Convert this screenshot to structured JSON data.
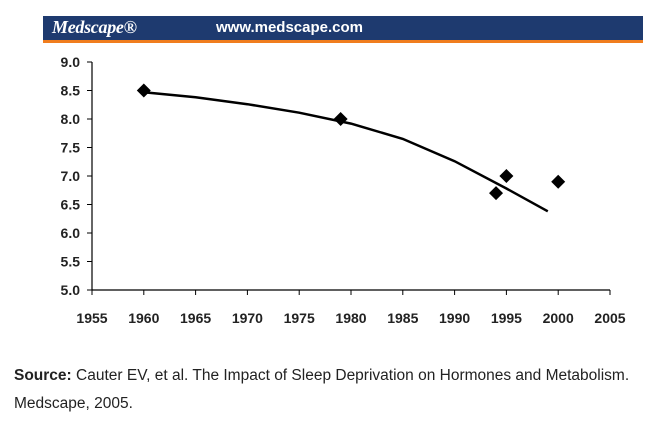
{
  "header": {
    "brand": "Medscape®",
    "site": "www.medscape.com"
  },
  "colors": {
    "banner": "#1e3a6f",
    "accent_strip": "#f07d1e",
    "marker": "#000000",
    "trend": "#000000"
  },
  "chart_data": {
    "type": "scatter",
    "title": "",
    "xlabel": "",
    "ylabel": "",
    "xlim": [
      1955,
      2005
    ],
    "ylim": [
      5.0,
      9.0
    ],
    "x_ticks": [
      "1955",
      "1960",
      "1965",
      "1970",
      "1975",
      "1980",
      "1985",
      "1990",
      "1995",
      "2000",
      "2005"
    ],
    "y_ticks": [
      "5.0",
      "5.5",
      "6.0",
      "6.5",
      "7.0",
      "7.5",
      "8.0",
      "8.5",
      "9.0"
    ],
    "grid": false,
    "legend": "none",
    "series": [
      {
        "marker": "diamond",
        "points": [
          {
            "x": 1960,
            "y": 8.5
          },
          {
            "x": 1979,
            "y": 8.0
          },
          {
            "x": 1994,
            "y": 6.7
          },
          {
            "x": 1995,
            "y": 7.0
          },
          {
            "x": 2000,
            "y": 6.9
          }
        ]
      }
    ],
    "trendline": {
      "type": "curve",
      "points": [
        {
          "x": 1960,
          "y": 8.47
        },
        {
          "x": 1965,
          "y": 8.38
        },
        {
          "x": 1970,
          "y": 8.26
        },
        {
          "x": 1975,
          "y": 8.11
        },
        {
          "x": 1980,
          "y": 7.92
        },
        {
          "x": 1985,
          "y": 7.65
        },
        {
          "x": 1990,
          "y": 7.26
        },
        {
          "x": 1995,
          "y": 6.78
        },
        {
          "x": 1999,
          "y": 6.38
        }
      ]
    }
  },
  "source": {
    "label": "Source:",
    "text": " Cauter EV, et al. The Impact of Sleep Deprivation on Hormones and Metabolism. Medscape, 2005."
  }
}
